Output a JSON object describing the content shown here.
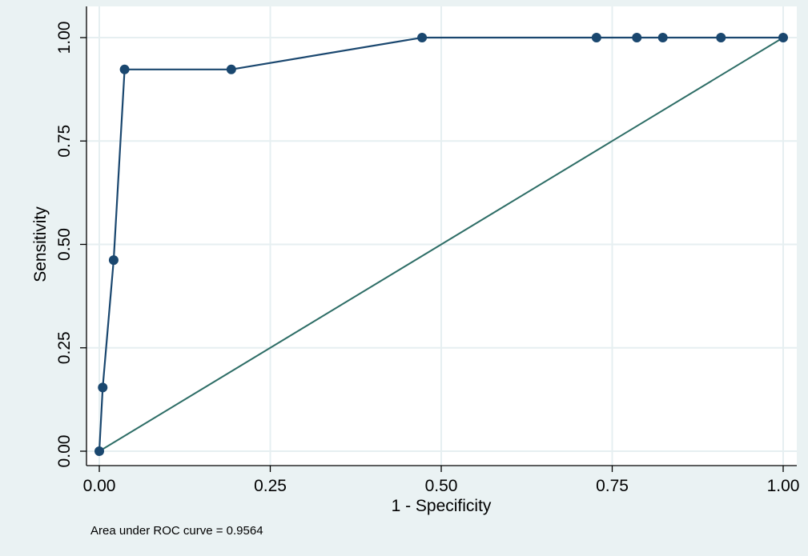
{
  "chart_data": {
    "type": "line",
    "xlabel": "1 - Specificity",
    "ylabel": "Sensitivity",
    "xlim": [
      0,
      1
    ],
    "ylim": [
      0,
      1
    ],
    "x_ticks": [
      "0.00",
      "0.25",
      "0.50",
      "0.75",
      "1.00"
    ],
    "y_ticks": [
      "0.00",
      "0.25",
      "0.50",
      "0.75",
      "1.00"
    ],
    "grid": true,
    "note": "Area under ROC curve = 0.9564",
    "series": [
      {
        "type": "line-markers",
        "x": [
          0.0,
          0.005,
          0.021,
          0.037,
          0.193,
          0.472,
          0.727,
          0.786,
          0.824,
          0.909,
          1.0
        ],
        "y": [
          0.0,
          0.154,
          0.462,
          0.923,
          0.923,
          1.0,
          1.0,
          1.0,
          1.0,
          1.0,
          1.0
        ]
      },
      {
        "type": "reference-line",
        "x": [
          0,
          1
        ],
        "y": [
          0,
          1
        ]
      }
    ],
    "colors": {
      "background": "#eaf2f3",
      "plot_background": "#ffffff",
      "grid": "#e6eff1",
      "roc_curve": "#1a476f",
      "reference_line": "#2d6d66"
    }
  }
}
